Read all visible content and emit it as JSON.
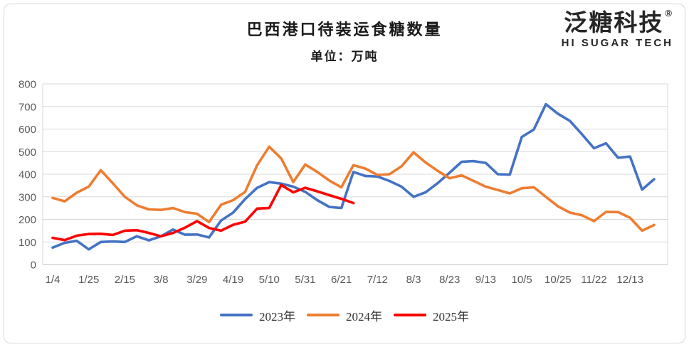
{
  "header": {
    "title": "巴西港口待装运食糖数量",
    "subtitle": "单位：万吨"
  },
  "logo": {
    "brand": "泛糖科技",
    "registered_mark": "®",
    "tagline": "HI SUGAR TECH"
  },
  "chart_data": {
    "type": "line",
    "title": "巴西港口待装运食糖数量",
    "subtitle": "单位：万吨",
    "unit": "万吨",
    "grid": true,
    "legend_position": "bottom",
    "ylim": [
      0,
      800
    ],
    "y_ticks": [
      0,
      100,
      200,
      300,
      400,
      500,
      600,
      700,
      800
    ],
    "x_tick_labels": [
      "1/4",
      "1/25",
      "2/15",
      "3/8",
      "3/29",
      "4/19",
      "5/10",
      "5/31",
      "6/21",
      "7/12",
      "8/3",
      "8/23",
      "9/13",
      "10/5",
      "10/25",
      "11/22",
      "12/13"
    ],
    "x_tick_every": 3,
    "axis_text_color": "#595959",
    "gridline_color": "#d9d9d9",
    "axis_line_color": "#bfbfbf",
    "series": [
      {
        "name": "2023年",
        "color": "#4472C4",
        "values": [
          75,
          96,
          105,
          67,
          100,
          102,
          100,
          125,
          107,
          125,
          155,
          132,
          133,
          120,
          195,
          230,
          290,
          340,
          365,
          358,
          345,
          322,
          285,
          255,
          250,
          410,
          392,
          390,
          370,
          345,
          300,
          320,
          360,
          407,
          455,
          458,
          450,
          400,
          398,
          565,
          598,
          710,
          668,
          636,
          577,
          515,
          537,
          473,
          478,
          332,
          378
        ]
      },
      {
        "name": "2024年",
        "color": "#ED7D31",
        "values": [
          295,
          280,
          318,
          345,
          418,
          360,
          300,
          262,
          244,
          242,
          250,
          232,
          225,
          188,
          265,
          285,
          322,
          440,
          522,
          470,
          365,
          443,
          410,
          372,
          342,
          440,
          425,
          397,
          400,
          435,
          497,
          452,
          415,
          382,
          395,
          370,
          345,
          330,
          315,
          338,
          342,
          300,
          258,
          230,
          218,
          192,
          233,
          232,
          207,
          150,
          175
        ]
      },
      {
        "name": "2025年",
        "color": "#FF0000",
        "values": [
          118,
          108,
          128,
          135,
          136,
          131,
          150,
          152,
          140,
          125,
          140,
          163,
          192,
          162,
          150,
          176,
          190,
          248,
          250,
          352,
          320,
          340,
          324,
          307,
          291,
          272
        ]
      }
    ]
  }
}
